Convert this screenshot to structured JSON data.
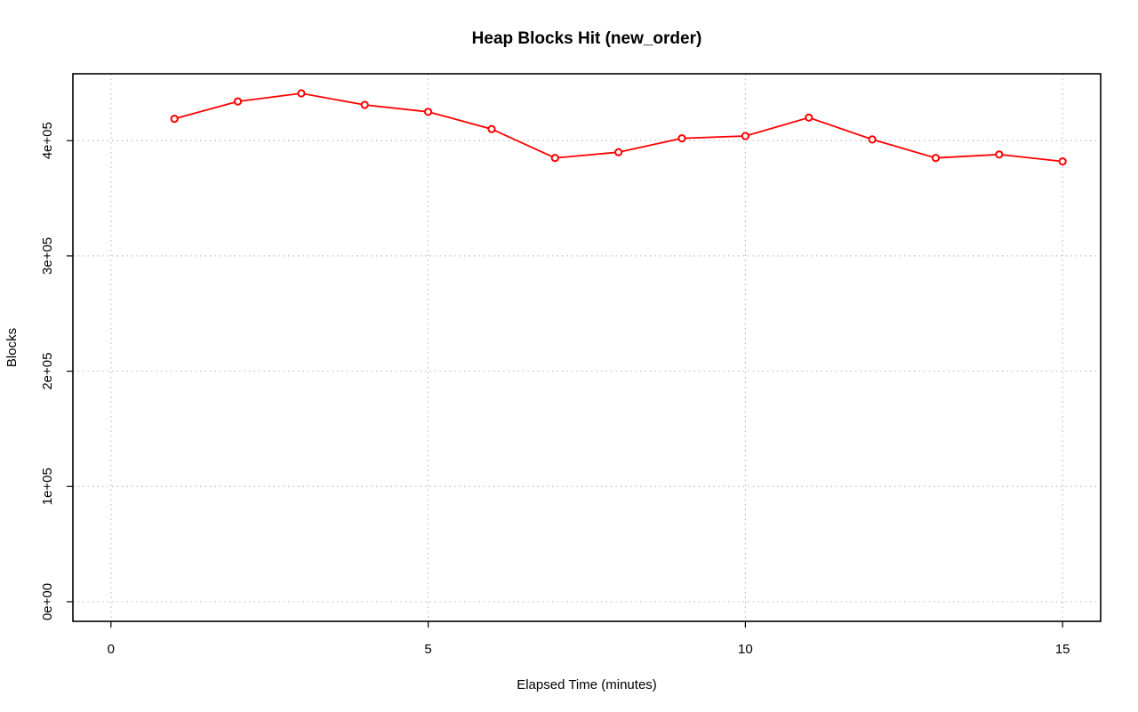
{
  "chart_data": {
    "type": "line",
    "title": "Heap Blocks Hit (new_order)",
    "xlabel": "Elapsed Time (minutes)",
    "ylabel": "Blocks",
    "xlim": [
      -0.6,
      15.6
    ],
    "ylim": [
      -17000,
      458000
    ],
    "x_ticks": [
      0,
      5,
      10,
      15
    ],
    "x_tick_labels": [
      "0",
      "5",
      "10",
      "15"
    ],
    "y_ticks": [
      0,
      100000,
      200000,
      300000,
      400000
    ],
    "y_tick_labels": [
      "0e+00",
      "1e+05",
      "2e+05",
      "3e+05",
      "4e+05"
    ],
    "grid": true,
    "series": [
      {
        "color": "#ff0000",
        "x": [
          1,
          2,
          3,
          4,
          5,
          6,
          7,
          8,
          9,
          10,
          11,
          12,
          13,
          14,
          15
        ],
        "values": [
          419000,
          434000,
          441000,
          431000,
          425000,
          410000,
          385000,
          390000,
          402000,
          404000,
          420000,
          401000,
          385000,
          388000,
          382000
        ]
      }
    ]
  }
}
